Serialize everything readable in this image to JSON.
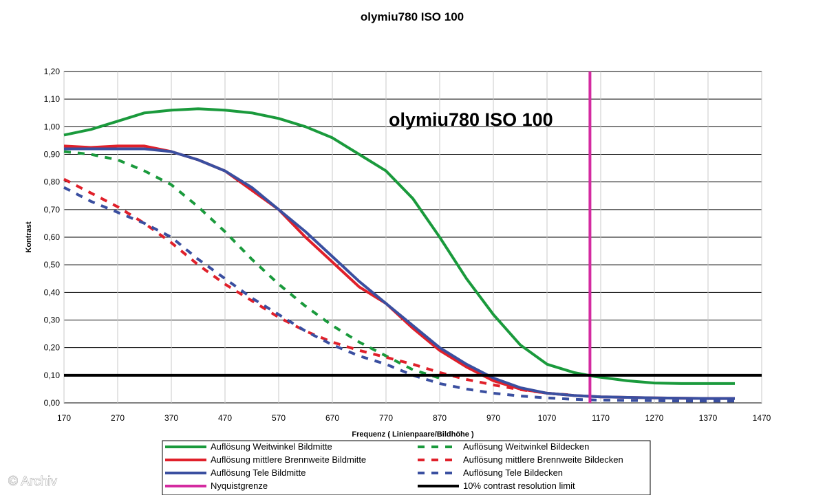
{
  "watermark": "© Archiv",
  "chart_data": {
    "type": "line",
    "title": "olymiu780 ISO 100",
    "inner_title": "olymiu780 ISO 100",
    "xlabel": "Frequenz ( Linienpaare/Bildhöhe )",
    "ylabel": "Kontrast",
    "xlim": [
      170,
      1470
    ],
    "ylim": [
      0,
      1.2
    ],
    "x_ticks": [
      "170",
      "270",
      "370",
      "470",
      "570",
      "670",
      "770",
      "870",
      "970",
      "1070",
      "1170",
      "1270",
      "1370",
      "1470"
    ],
    "y_ticks": [
      "0,00",
      "0,10",
      "0,20",
      "0,30",
      "0,40",
      "0,50",
      "0,60",
      "0,70",
      "0,80",
      "0,90",
      "1,00",
      "1,10",
      "1,20"
    ],
    "grid": "horizontal and vertical",
    "legend_position": "bottom",
    "series": [
      {
        "name": "Auflösung Weitwinkel Bildmitte",
        "color": "#1a9a3c",
        "style": "solid",
        "x": [
          170,
          220,
          270,
          320,
          370,
          420,
          470,
          520,
          570,
          620,
          670,
          720,
          770,
          820,
          870,
          920,
          970,
          1020,
          1070,
          1120,
          1160,
          1220,
          1270,
          1320,
          1370,
          1420
        ],
        "y": [
          0.97,
          0.99,
          1.02,
          1.05,
          1.06,
          1.065,
          1.06,
          1.05,
          1.03,
          1.0,
          0.96,
          0.9,
          0.84,
          0.74,
          0.6,
          0.45,
          0.32,
          0.21,
          0.14,
          0.11,
          0.095,
          0.08,
          0.072,
          0.07,
          0.07,
          0.07
        ]
      },
      {
        "name": "Auflösung Weitwinkel Bildecken",
        "color": "#1a9a3c",
        "style": "dashed",
        "x": [
          170,
          220,
          270,
          320,
          370,
          420,
          470,
          520,
          570,
          620,
          670,
          720,
          770,
          820,
          870
        ],
        "y": [
          0.91,
          0.9,
          0.88,
          0.84,
          0.79,
          0.71,
          0.62,
          0.52,
          0.43,
          0.35,
          0.28,
          0.22,
          0.17,
          0.12,
          0.09
        ]
      },
      {
        "name": "Auflösung mittlere Brennweite Bildmitte",
        "color": "#e0202a",
        "style": "solid",
        "x": [
          170,
          220,
          270,
          320,
          370,
          420,
          470,
          520,
          570,
          620,
          670,
          720,
          770,
          820,
          870,
          920,
          970,
          1020,
          1070,
          1120,
          1170,
          1220,
          1270,
          1320,
          1370,
          1420
        ],
        "y": [
          0.93,
          0.925,
          0.93,
          0.93,
          0.91,
          0.88,
          0.84,
          0.77,
          0.7,
          0.6,
          0.51,
          0.42,
          0.36,
          0.27,
          0.19,
          0.13,
          0.08,
          0.05,
          0.035,
          0.027,
          0.022,
          0.02,
          0.018,
          0.017,
          0.016,
          0.016
        ]
      },
      {
        "name": "Auflösung mittlere Brennweite Bildecken",
        "color": "#e0202a",
        "style": "dashed",
        "x": [
          170,
          220,
          270,
          320,
          370,
          420,
          470,
          520,
          570,
          620,
          670,
          720,
          770,
          820,
          870,
          920,
          970,
          1020,
          1070,
          1120
        ],
        "y": [
          0.81,
          0.76,
          0.71,
          0.65,
          0.58,
          0.5,
          0.43,
          0.37,
          0.31,
          0.26,
          0.22,
          0.19,
          0.165,
          0.14,
          0.11,
          0.085,
          0.065,
          0.048,
          0.035,
          0.028
        ]
      },
      {
        "name": "Auflösung Tele Bildmitte",
        "color": "#3a4fa0",
        "style": "solid",
        "x": [
          170,
          220,
          270,
          320,
          370,
          420,
          470,
          520,
          570,
          620,
          670,
          720,
          770,
          820,
          870,
          920,
          970,
          1020,
          1070,
          1120,
          1170,
          1220,
          1270,
          1320,
          1370,
          1420
        ],
        "y": [
          0.92,
          0.92,
          0.92,
          0.92,
          0.91,
          0.88,
          0.84,
          0.78,
          0.7,
          0.62,
          0.53,
          0.44,
          0.36,
          0.28,
          0.2,
          0.14,
          0.09,
          0.055,
          0.035,
          0.027,
          0.022,
          0.02,
          0.018,
          0.017,
          0.016,
          0.016
        ]
      },
      {
        "name": "Auflösung Tele Bildecken",
        "color": "#3a4fa0",
        "style": "dashed",
        "x": [
          170,
          220,
          270,
          320,
          370,
          420,
          470,
          520,
          570,
          620,
          670,
          720,
          770,
          820,
          870,
          920,
          970,
          1020,
          1070,
          1120,
          1170,
          1220,
          1270,
          1320,
          1370,
          1420
        ],
        "y": [
          0.78,
          0.73,
          0.69,
          0.65,
          0.6,
          0.52,
          0.45,
          0.38,
          0.32,
          0.26,
          0.21,
          0.17,
          0.14,
          0.1,
          0.07,
          0.05,
          0.035,
          0.025,
          0.018,
          0.013,
          0.01,
          0.009,
          0.008,
          0.007,
          0.007,
          0.007
        ]
      }
    ],
    "reference_lines": [
      {
        "name": "Nyquistgrenze",
        "color": "#d42aa0",
        "orientation": "vertical",
        "x": 1150
      },
      {
        "name": "10% contrast resolution limit",
        "color": "#000000",
        "orientation": "horizontal",
        "y": 0.1
      }
    ],
    "legend": [
      {
        "label": "Auflösung Weitwinkel Bildmitte",
        "color": "#1a9a3c",
        "style": "solid"
      },
      {
        "label": "Auflösung Weitwinkel Bildecken",
        "color": "#1a9a3c",
        "style": "dashed"
      },
      {
        "label": "Auflösung mittlere Brennweite Bildmitte",
        "color": "#e0202a",
        "style": "solid"
      },
      {
        "label": "Auflösung mittlere Brennweite Bildecken",
        "color": "#e0202a",
        "style": "dashed"
      },
      {
        "label": "Auflösung Tele Bildmitte",
        "color": "#3a4fa0",
        "style": "solid"
      },
      {
        "label": "Auflösung Tele Bildecken",
        "color": "#3a4fa0",
        "style": "dashed"
      },
      {
        "label": "Nyquistgrenze",
        "color": "#d42aa0",
        "style": "solid"
      },
      {
        "label": "10% contrast resolution limit",
        "color": "#000000",
        "style": "solid"
      }
    ]
  }
}
